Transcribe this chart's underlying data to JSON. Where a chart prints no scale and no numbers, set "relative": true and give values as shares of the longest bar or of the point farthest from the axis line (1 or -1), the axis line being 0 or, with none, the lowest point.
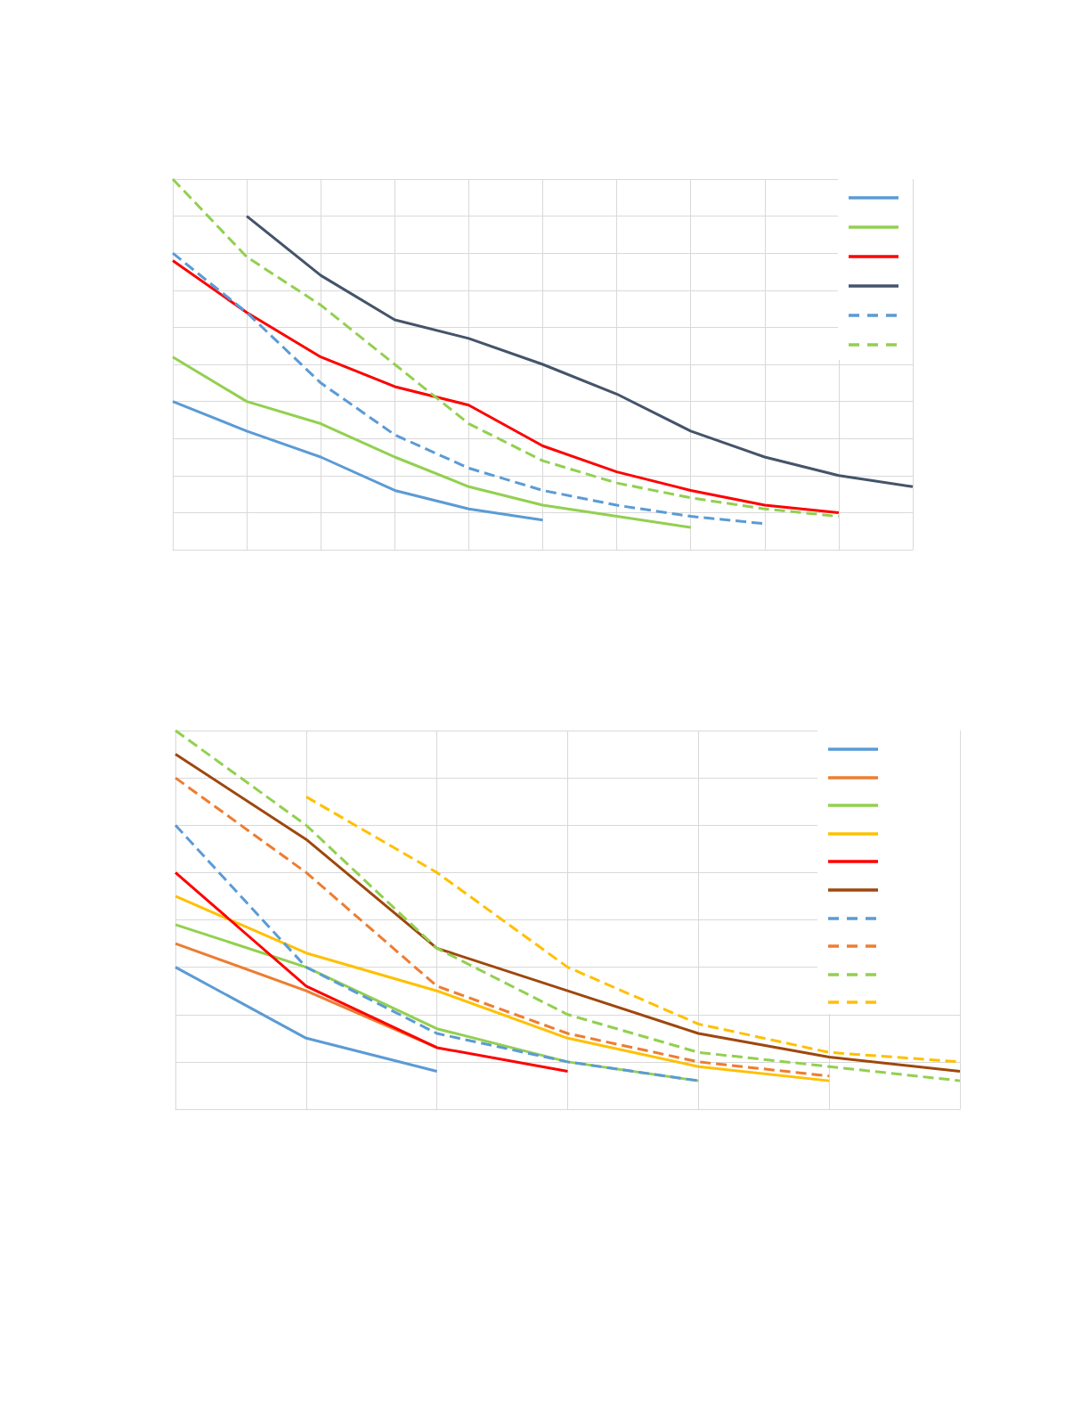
{
  "chart_data": [
    {
      "type": "line",
      "relative": true,
      "categories": [
        null,
        null,
        null,
        null,
        null,
        null,
        null,
        null,
        null,
        null,
        null
      ],
      "grid": true,
      "marker": "none",
      "series": [
        {
          "color": "#5b9bd5",
          "line_style": "solid",
          "values": [
            0.4,
            0.32,
            0.25,
            0.16,
            0.11,
            0.08,
            null,
            null,
            null,
            null,
            null
          ]
        },
        {
          "color": "#92d050",
          "line_style": "solid",
          "values": [
            0.52,
            0.4,
            0.34,
            0.25,
            0.17,
            0.12,
            0.09,
            0.06,
            null,
            null,
            null
          ]
        },
        {
          "color": "#ff0000",
          "line_style": "solid",
          "values": [
            0.78,
            0.64,
            0.52,
            0.44,
            0.39,
            0.28,
            0.21,
            0.16,
            0.12,
            0.1,
            null
          ]
        },
        {
          "color": "#44546a",
          "line_style": "solid",
          "values": [
            null,
            0.9,
            0.74,
            0.62,
            0.57,
            0.5,
            0.42,
            0.32,
            0.25,
            0.2,
            0.17
          ]
        },
        {
          "color": "#5b9bd5",
          "line_style": "dashed",
          "values": [
            0.8,
            0.64,
            0.45,
            0.31,
            0.22,
            0.16,
            0.12,
            0.09,
            0.07,
            null,
            null
          ]
        },
        {
          "color": "#92d050",
          "line_style": "dashed",
          "values": [
            1.0,
            0.79,
            0.66,
            0.5,
            0.34,
            0.24,
            0.18,
            0.14,
            0.11,
            0.09,
            null
          ]
        }
      ]
    },
    {
      "type": "line",
      "relative": true,
      "categories": [
        null,
        null,
        null,
        null,
        null,
        null,
        null
      ],
      "grid": true,
      "marker": "none",
      "series": [
        {
          "color": "#5b9bd5",
          "line_style": "solid",
          "values": [
            0.375,
            0.1875,
            0.1,
            null,
            null,
            null,
            null
          ]
        },
        {
          "color": "#ed7d31",
          "line_style": "solid",
          "values": [
            0.4375,
            0.3125,
            0.1625,
            null,
            null,
            null,
            null
          ]
        },
        {
          "color": "#92d050",
          "line_style": "solid",
          "values": [
            0.4875,
            0.375,
            0.2125,
            0.125,
            0.075,
            null,
            null
          ]
        },
        {
          "color": "#ffc000",
          "line_style": "solid",
          "values": [
            0.5625,
            0.4125,
            0.3125,
            0.1875,
            0.1125,
            0.075,
            null
          ]
        },
        {
          "color": "#ff0000",
          "line_style": "solid",
          "values": [
            0.625,
            0.325,
            0.1625,
            0.1,
            null,
            null,
            null
          ]
        },
        {
          "color": "#9e480e",
          "line_style": "solid",
          "values": [
            0.9375,
            0.7125,
            0.425,
            0.3125,
            0.2,
            0.1375,
            0.1
          ]
        },
        {
          "color": "#5b9bd5",
          "line_style": "dashed",
          "values": [
            0.75,
            0.375,
            0.2,
            0.125,
            0.075,
            null,
            null
          ]
        },
        {
          "color": "#ed7d31",
          "line_style": "dashed",
          "values": [
            0.875,
            0.625,
            0.325,
            0.2,
            0.125,
            0.0875,
            null
          ]
        },
        {
          "color": "#92d050",
          "line_style": "dashed",
          "values": [
            1.0,
            0.75,
            0.425,
            0.25,
            0.15,
            0.1125,
            0.075
          ]
        },
        {
          "color": "#ffc000",
          "line_style": "dashed",
          "values": [
            null,
            0.825,
            0.625,
            0.375,
            0.225,
            0.15,
            0.125
          ]
        }
      ]
    }
  ]
}
